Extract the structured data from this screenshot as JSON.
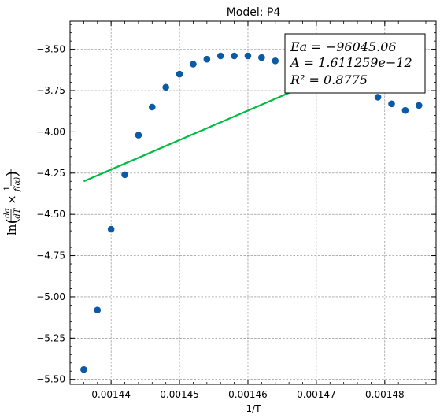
{
  "chart_data": {
    "type": "scatter",
    "title": "Model: P4",
    "xlabel": "1/T",
    "ylabel_tex": "ln(dα/dT × 1/f(α))",
    "xlim": [
      0.001434,
      0.0014875
    ],
    "ylim": [
      -5.53,
      -3.33
    ],
    "xticks": [
      0.00144,
      0.00145,
      0.00146,
      0.00147,
      0.00148
    ],
    "xtick_labels": [
      "0.00144",
      "0.00145",
      "0.00146",
      "0.00147",
      "0.00148"
    ],
    "yticks": [
      -5.5,
      -5.25,
      -5.0,
      -4.75,
      -4.5,
      -4.25,
      -4.0,
      -3.75,
      -3.5
    ],
    "ytick_labels": [
      "−5.50",
      "−5.25",
      "−5.00",
      "−4.75",
      "−4.50",
      "−4.25",
      "−4.00",
      "−3.75",
      "−3.50"
    ],
    "grid": true,
    "series": [
      {
        "kind": "points",
        "color": "#0a5aa5",
        "x": [
          0.001436,
          0.001438,
          0.00144,
          0.001442,
          0.001444,
          0.001446,
          0.001448,
          0.00145,
          0.001452,
          0.001454,
          0.001456,
          0.001458,
          0.00146,
          0.001462,
          0.001464,
          0.001479,
          0.001481,
          0.001483,
          0.001485
        ],
        "y": [
          -5.44,
          -5.08,
          -4.59,
          -4.26,
          -4.02,
          -3.85,
          -3.73,
          -3.65,
          -3.59,
          -3.56,
          -3.54,
          -3.54,
          -3.54,
          -3.55,
          -3.57,
          -3.79,
          -3.83,
          -3.87,
          -3.84
        ]
      },
      {
        "kind": "fit-line",
        "color": "#00bb44",
        "x": [
          0.001436,
          0.001483
        ],
        "y": [
          -4.3,
          -3.46
        ]
      }
    ],
    "annotation": {
      "line1": "Ea = −96045.06",
      "line2": "A = 1.611259e−12",
      "line3": "R² = 0.8775",
      "placement": "top-right"
    }
  }
}
